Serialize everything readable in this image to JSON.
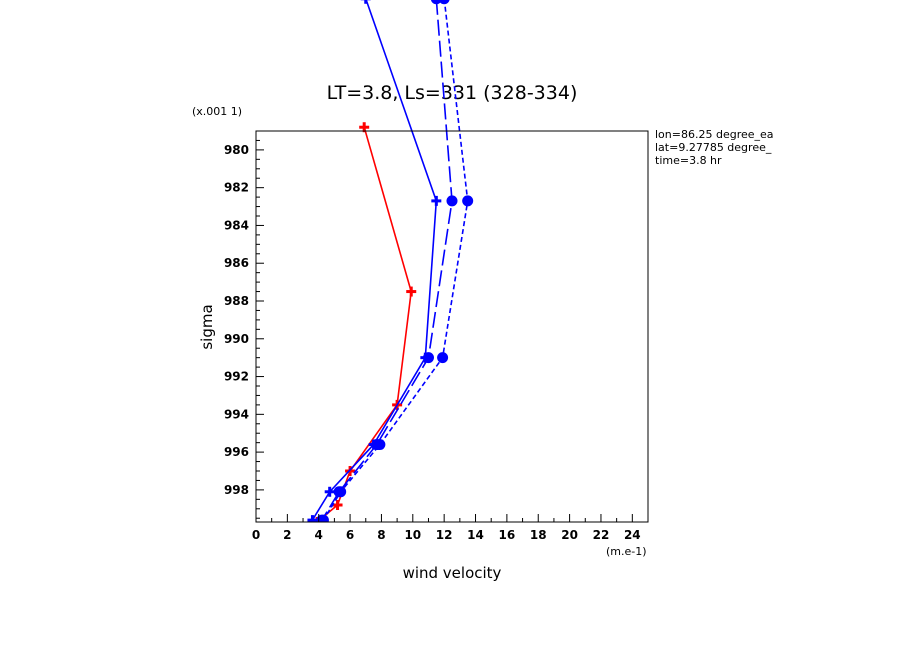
{
  "chart_data": {
    "type": "line",
    "title": "LT=3.8, Ls=331 (328-334)",
    "xlabel": "wind velocity",
    "xunits": "(m.e-1)",
    "ylabel": "sigma",
    "yunits": "(x.001 1)",
    "xlim": [
      0,
      25
    ],
    "ylim": [
      979,
      999.7
    ],
    "y_inverted": true,
    "xticks": [
      "0",
      "2",
      "4",
      "6",
      "8",
      "10",
      "12",
      "14",
      "16",
      "18",
      "20",
      "22",
      "24"
    ],
    "yticks": [
      "980",
      "982",
      "984",
      "986",
      "988",
      "990",
      "992",
      "994",
      "996",
      "998"
    ],
    "annotations": [
      "lon=86.25 degree_ea",
      "lat=9.27785 degree_",
      "time=3.8 hr"
    ],
    "series": [
      {
        "color": "#ff0000",
        "style": "solid",
        "marker": "plus",
        "x": [
          6.9,
          9.9,
          9.0,
          6.0,
          5.2,
          3.9
        ],
        "y": [
          978.8,
          987.5,
          993.5,
          997.0,
          998.8,
          999.7
        ]
      },
      {
        "color": "#0000ff",
        "style": "solid",
        "marker": "plus",
        "x": [
          7.0,
          11.5,
          10.8,
          7.5,
          4.7,
          3.6
        ],
        "y": [
          972.0,
          982.7,
          991.0,
          995.6,
          998.1,
          999.6
        ]
      },
      {
        "color": "#0000ff",
        "style": "long-dash",
        "marker": "filled-circle",
        "x": [
          11.5,
          12.5,
          11.0,
          7.7,
          5.3,
          4.2
        ],
        "y": [
          972.0,
          982.7,
          991.0,
          995.6,
          998.1,
          999.6
        ]
      },
      {
        "color": "#0000ff",
        "style": "short-dash",
        "marker": "filled-circle",
        "x": [
          12.0,
          13.5,
          11.9,
          7.9,
          5.4,
          4.3
        ],
        "y": [
          972.0,
          982.7,
          991.0,
          995.6,
          998.1,
          999.6
        ]
      }
    ]
  }
}
